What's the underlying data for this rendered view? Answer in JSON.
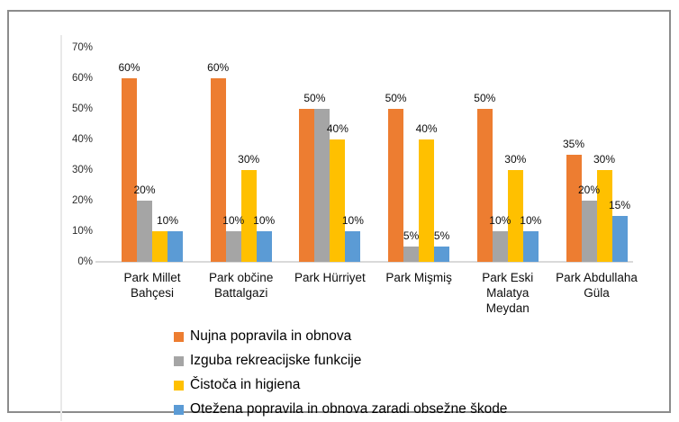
{
  "chart_data": {
    "type": "bar",
    "title": "",
    "categories": [
      "Park Millet Bahçesi",
      "Park občine Battalgazi",
      "Park Hürriyet",
      "Park Mişmiş",
      "Park Eski Malatya Meydan",
      "Park Abdullaha Güla"
    ],
    "category_label_lines": [
      [
        "Park Millet",
        "Bahçesi"
      ],
      [
        "Park občine",
        "Battalgazi"
      ],
      [
        "Park Hürriyet"
      ],
      [
        "Park Mişmiş"
      ],
      [
        "Park Eski",
        "Malatya",
        "Meydan"
      ],
      [
        "Park Abdullaha",
        "Güla"
      ]
    ],
    "series": [
      {
        "name": "Nujna popravila in obnova",
        "color": "#ED7D31",
        "values": [
          60,
          60,
          50,
          50,
          50,
          35
        ]
      },
      {
        "name": "Izguba rekreacijske funkcije",
        "color": "#A5A5A5",
        "values": [
          20,
          10,
          50,
          5,
          10,
          20
        ]
      },
      {
        "name": "Čistoča in higiena",
        "color": "#FFC000",
        "values": [
          10,
          30,
          40,
          40,
          30,
          30
        ]
      },
      {
        "name": "Otežena popravila in obnova zaradi obsežne škode",
        "color": "#5B9BD5",
        "values": [
          10,
          10,
          10,
          5,
          10,
          15
        ]
      }
    ],
    "ylim": [
      0,
      70
    ],
    "yticks": [
      0,
      10,
      20,
      30,
      40,
      50,
      60,
      70
    ],
    "ytick_format": "{v}%",
    "data_label_format": "{v}%",
    "grid": false,
    "legend_position": "bottom-left",
    "axis_line_color": "#d9d9d9"
  }
}
